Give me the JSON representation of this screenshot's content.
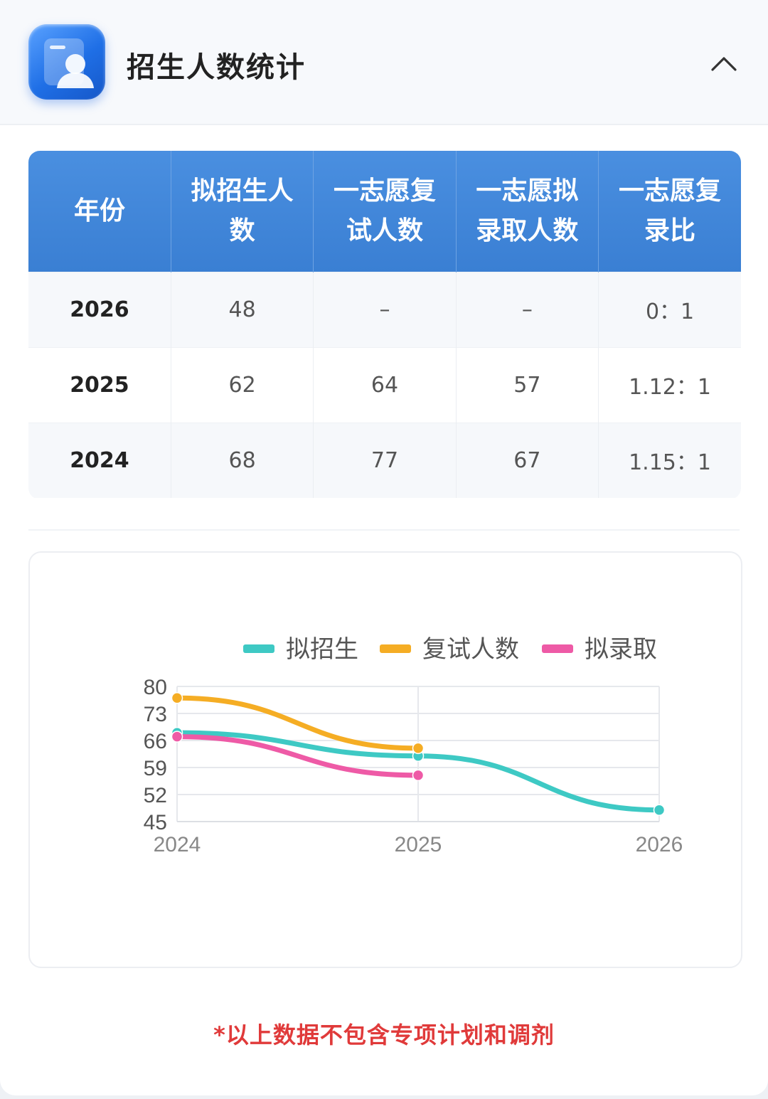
{
  "header": {
    "title": "招生人数统计",
    "icon": "enrollment-profile-icon",
    "collapse_icon": "chevron-up-icon"
  },
  "table": {
    "columns": [
      "年份",
      "拟招生人数",
      "一志愿复试人数",
      "一志愿拟录取人数",
      "一志愿复录比"
    ],
    "rows": [
      [
        "2026",
        "48",
        "–",
        "–",
        "0：1"
      ],
      [
        "2025",
        "62",
        "64",
        "57",
        "1.12：1"
      ],
      [
        "2024",
        "68",
        "77",
        "67",
        "1.15：1"
      ]
    ]
  },
  "chart_data": {
    "type": "line",
    "categories": [
      "2024",
      "2025",
      "2026"
    ],
    "series": [
      {
        "name": "拟招生",
        "color": "#3ec9c4",
        "values": [
          68,
          62,
          48
        ]
      },
      {
        "name": "复试人数",
        "color": "#f5ad24",
        "values": [
          77,
          64,
          null
        ]
      },
      {
        "name": "拟录取",
        "color": "#ee5aa6",
        "values": [
          67,
          57,
          null
        ]
      }
    ],
    "y_ticks": [
      "45",
      "52",
      "59",
      "66",
      "73",
      "80"
    ],
    "ylim": [
      45,
      80
    ],
    "grid": true,
    "legend_position": "top"
  },
  "footer": {
    "note": "*以上数据不包含专项计划和调剂"
  },
  "colors": {
    "header_blue": "#3f86d9",
    "note_red": "#e03a3a"
  }
}
